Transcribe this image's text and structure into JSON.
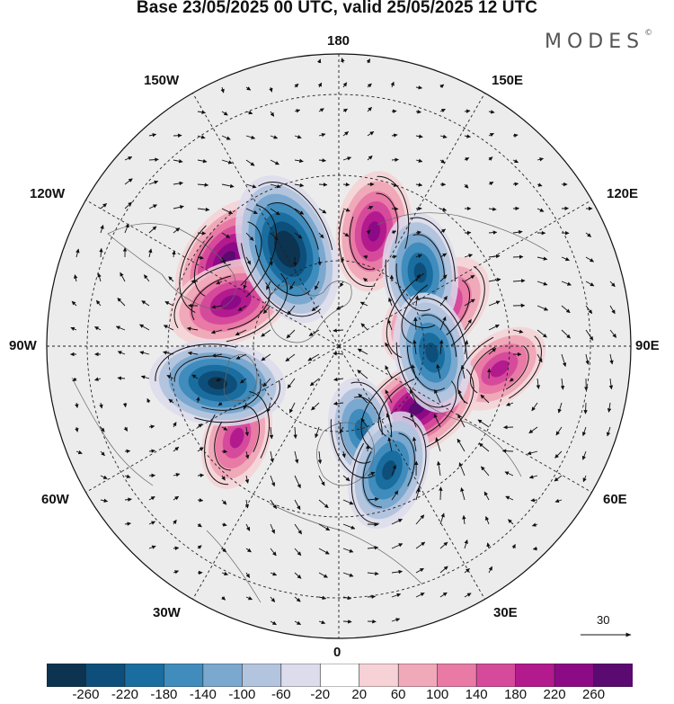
{
  "title": "Base 23/05/2025 00 UTC, valid 25/05/2025 12 UTC",
  "brand": "MODES",
  "brand_mark": "©",
  "longitude_labels": {
    "top": "180",
    "bottom": "0",
    "left": "90W",
    "right": "90E",
    "upper_left_1": "150W",
    "upper_left_2": "120W",
    "upper_right_1": "150E",
    "upper_right_2": "120E",
    "lower_left_1": "60W",
    "lower_left_2": "30W",
    "lower_right_1": "60E",
    "lower_right_2": "30E"
  },
  "vector_scale": {
    "label": "30",
    "icon": "arrow-right-icon"
  },
  "colorbar": {
    "ticks": [
      "-260",
      "-220",
      "-180",
      "-140",
      "-100",
      "-60",
      "-20",
      "20",
      "60",
      "100",
      "140",
      "180",
      "220",
      "260"
    ],
    "colors": [
      "#0c3350",
      "#0d4f7a",
      "#1a6d9f",
      "#3f8cbd",
      "#7aa8cf",
      "#b3c4de",
      "#dcdcec",
      "#ffffff",
      "#f6d2d6",
      "#f0a9b9",
      "#e87aa5",
      "#d64a9b",
      "#b21a8e",
      "#8d0a86",
      "#5a0a70"
    ]
  },
  "map_data": {
    "projection": "north polar stereographic",
    "field": "shaded anomaly with wind vectors",
    "highs": [
      {
        "name": "high-pacific-150E",
        "lon": 163,
        "lat": 52,
        "level": 180
      },
      {
        "name": "high-alaska",
        "lon": -128,
        "lat": 46,
        "level": 220
      },
      {
        "name": "high-canada-northwest",
        "lon": -112,
        "lat": 53,
        "level": 200
      },
      {
        "name": "high-siberia-105E",
        "lon": 110,
        "lat": 57,
        "level": 200
      },
      {
        "name": "high-central-asia",
        "lon": 82,
        "lat": 40,
        "level": 140
      },
      {
        "name": "high-western-russia",
        "lon": 52,
        "lat": 58,
        "level": 220
      },
      {
        "name": "high-north-atlantic",
        "lon": -48,
        "lat": 47,
        "level": 140
      }
    ],
    "lows": [
      {
        "name": "low-gulf-of-alaska",
        "lon": -152,
        "lat": 55,
        "level": -260
      },
      {
        "name": "low-sea-of-okhotsk",
        "lon": 132,
        "lat": 55,
        "level": -180
      },
      {
        "name": "low-central-siberia",
        "lon": 86,
        "lat": 60,
        "level": -180
      },
      {
        "name": "low-eastern-canada",
        "lon": -73,
        "lat": 50,
        "level": -220
      },
      {
        "name": "low-scandinavia",
        "lon": 15,
        "lat": 62,
        "level": -140
      },
      {
        "name": "low-eastern-europe",
        "lon": 22,
        "lat": 48,
        "level": -180
      }
    ]
  }
}
